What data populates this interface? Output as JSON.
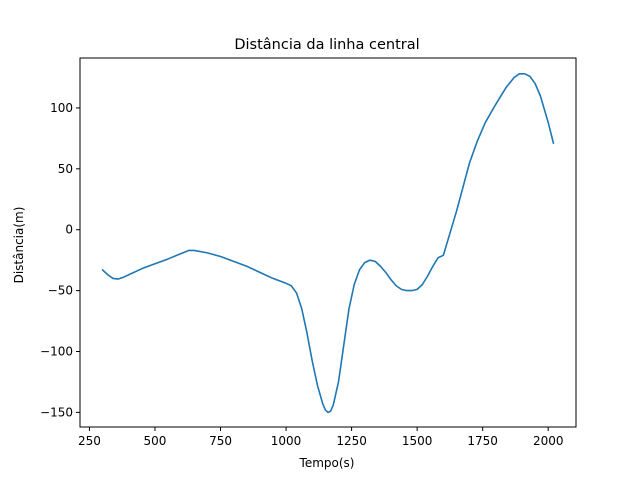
{
  "chart_data": {
    "type": "line",
    "title": "Distância da linha central",
    "xlabel": "Tempo(s)",
    "ylabel": "Distância(m)",
    "xlim": [
      214,
      2106
    ],
    "ylim": [
      -162,
      141
    ],
    "xticks": [
      250,
      500,
      750,
      1000,
      1250,
      1500,
      1750,
      2000
    ],
    "yticks": [
      -150,
      -100,
      -50,
      0,
      50,
      100
    ],
    "xtick_labels": [
      "250",
      "500",
      "750",
      "1000",
      "1250",
      "1500",
      "1750",
      "2000"
    ],
    "ytick_labels": [
      "−150",
      "−100",
      "−50",
      "0",
      "50",
      "100"
    ],
    "grid": false,
    "color": "#1f77b4",
    "series": [
      {
        "x": [
          300,
          320,
          340,
          360,
          380,
          400,
          450,
          500,
          550,
          600,
          630,
          650,
          700,
          750,
          800,
          850,
          900,
          950,
          1000,
          1020,
          1040,
          1060,
          1080,
          1100,
          1120,
          1140,
          1150,
          1160,
          1170,
          1180,
          1200,
          1220,
          1240,
          1260,
          1280,
          1300,
          1320,
          1340,
          1360,
          1380,
          1400,
          1420,
          1440,
          1460,
          1480,
          1500,
          1520,
          1540,
          1560,
          1580,
          1600,
          1650,
          1700,
          1730,
          1760,
          1800,
          1840,
          1870,
          1890,
          1910,
          1930,
          1950,
          1970,
          2000,
          2020
        ],
        "y": [
          -33,
          -37,
          -40,
          -40.5,
          -39,
          -37,
          -32,
          -28,
          -24,
          -19.5,
          -17,
          -17,
          -19,
          -22,
          -26,
          -30,
          -35,
          -40,
          -44,
          -46,
          -52,
          -65,
          -85,
          -108,
          -128,
          -143,
          -148,
          -150,
          -149,
          -144,
          -125,
          -95,
          -65,
          -45,
          -33,
          -27,
          -25,
          -26,
          -30,
          -35,
          -41,
          -46,
          -49,
          -50,
          -50,
          -49,
          -45,
          -38,
          -30,
          -23,
          -21,
          15,
          55,
          73,
          88,
          103,
          117,
          125,
          128,
          128,
          126,
          120,
          110,
          88,
          71
        ]
      }
    ]
  }
}
